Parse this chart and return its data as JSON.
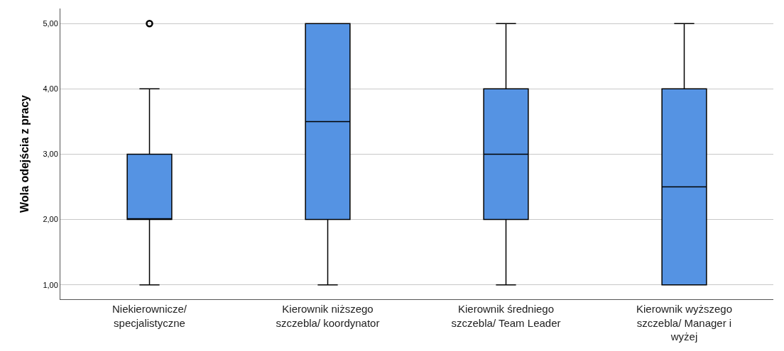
{
  "chart_data": {
    "type": "box",
    "ylabel": "Wola odejścia z pracy",
    "categories": [
      "Niekierownicze/\nspecjalistyczne",
      "Kierownik niższego\nszczebla/ koordynator",
      "Kierownik średniego\nszczebla/ Team Leader",
      "Kierownik wyższego\nszczebla/ Manager i\nwyżej"
    ],
    "boxes": [
      {
        "low": 1,
        "q1": 2,
        "median": 2,
        "q3": 3,
        "high": 4,
        "outliers": [
          5
        ]
      },
      {
        "low": 1,
        "q1": 2,
        "median": 3.5,
        "q3": 5,
        "high": 5
      },
      {
        "low": 1,
        "q1": 2,
        "median": 3,
        "q3": 4,
        "high": 5
      },
      {
        "low": 1,
        "q1": 1,
        "median": 2.5,
        "q3": 4,
        "high": 5
      }
    ],
    "color": "#5593e3",
    "ylim": [
      0.78,
      5.23
    ],
    "yticks": [
      {
        "value": 1,
        "label": "1,00"
      },
      {
        "value": 2,
        "label": "2,00"
      },
      {
        "value": 3,
        "label": "3,00"
      },
      {
        "value": 4,
        "label": "4,00"
      },
      {
        "value": 5,
        "label": "5,00"
      }
    ],
    "grid": "y"
  }
}
